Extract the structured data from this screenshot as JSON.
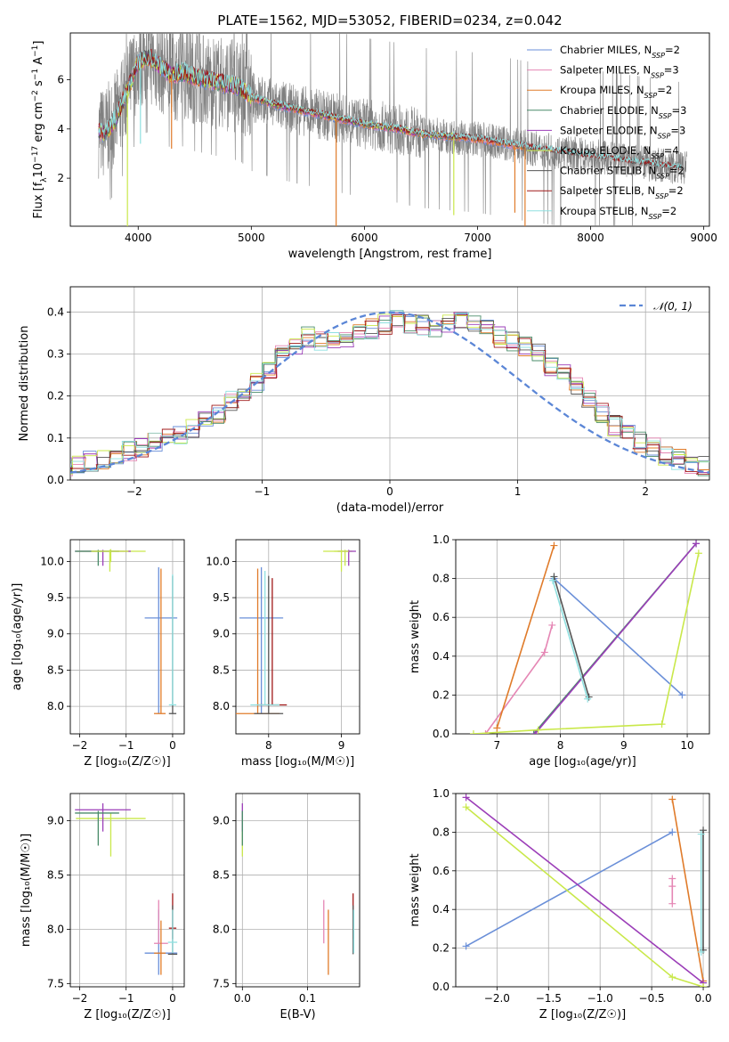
{
  "title": "PLATE=1562, MJD=53052, FIBERID=0234, z=0.042",
  "colors": {
    "chabrier_miles": "#6a8fd8",
    "salpeter_miles": "#e586b4",
    "kroupa_miles": "#e07b2a",
    "chabrier_elodie": "#4a8c6a",
    "salpeter_elodie": "#9b3db8",
    "kroupa_elodie": "#c9e84a",
    "chabrier_stelib": "#555555",
    "salpeter_stelib": "#a01818",
    "kroupa_stelib": "#8fe0e0",
    "normal": "#5b86d6",
    "data": "#808080"
  },
  "chart_data": [
    {
      "id": "spectrum",
      "type": "line",
      "xlabel": "wavelength [Angstrom, rest frame]",
      "xlim": [
        3400,
        9050
      ],
      "ylim": [
        0.05,
        7.9
      ],
      "xticks": [
        4000,
        5000,
        6000,
        7000,
        8000,
        9000
      ],
      "yticks": [
        2,
        4,
        6
      ],
      "legend": {
        "placement": "top-right",
        "entries": [
          {
            "pre": "Chabrier MILES, N",
            "sub": "SSP",
            "post": "=2",
            "color_key": "chabrier_miles"
          },
          {
            "pre": "Salpeter MILES, N",
            "sub": "SSP",
            "post": "=3",
            "color_key": "salpeter_miles"
          },
          {
            "pre": "Kroupa MILES, N",
            "sub": "SSP",
            "post": "=2",
            "color_key": "kroupa_miles"
          },
          {
            "pre": "Chabrier ELODIE, N",
            "sub": "SSP",
            "post": "=3",
            "color_key": "chabrier_elodie"
          },
          {
            "pre": "Salpeter ELODIE, N",
            "sub": "SSP",
            "post": "=3",
            "color_key": "salpeter_elodie"
          },
          {
            "pre": "Kroupa ELODIE, N",
            "sub": "SSP",
            "post": "=4",
            "color_key": "kroupa_elodie"
          },
          {
            "pre": "Chabrier STELIB, N",
            "sub": "SSP",
            "post": "=2",
            "color_key": "chabrier_stelib"
          },
          {
            "pre": "Salpeter STELIB, N",
            "sub": "SSP",
            "post": "=2",
            "color_key": "salpeter_stelib"
          },
          {
            "pre": "Kroupa STELIB, N",
            "sub": "SSP",
            "post": "=2",
            "color_key": "kroupa_stelib"
          }
        ]
      },
      "continuum": [
        [
          3650,
          3.9
        ],
        [
          3700,
          3.8
        ],
        [
          3800,
          4.4
        ],
        [
          3900,
          5.5
        ],
        [
          4000,
          6.7
        ],
        [
          4100,
          6.9
        ],
        [
          4200,
          6.5
        ],
        [
          4300,
          6.2
        ],
        [
          4400,
          6.3
        ],
        [
          4500,
          6.1
        ],
        [
          4700,
          5.9
        ],
        [
          4900,
          5.7
        ],
        [
          5000,
          5.3
        ],
        [
          5200,
          5.0
        ],
        [
          5500,
          4.7
        ],
        [
          5800,
          4.4
        ],
        [
          6000,
          4.2
        ],
        [
          6300,
          4.0
        ],
        [
          6500,
          3.8
        ],
        [
          7000,
          3.6
        ],
        [
          7500,
          3.2
        ],
        [
          8000,
          2.9
        ],
        [
          8500,
          2.6
        ],
        [
          8800,
          2.4
        ]
      ],
      "model_dips": [
        [
          3905,
          0.05,
          "kroupa_elodie"
        ],
        [
          4020,
          3.4,
          "kroupa_stelib"
        ],
        [
          4295,
          3.2,
          "kroupa_miles"
        ],
        [
          5750,
          0.05,
          "kroupa_miles"
        ],
        [
          6790,
          0.5,
          "kroupa_elodie"
        ],
        [
          7330,
          0.6,
          "kroupa_miles"
        ],
        [
          7420,
          0.05,
          "kroupa_miles"
        ]
      ]
    },
    {
      "id": "residuals",
      "type": "area",
      "xlabel": "(data-model)/error",
      "ylabel": "Normed distribution",
      "xlim": [
        -2.5,
        2.5
      ],
      "ylim": [
        0,
        0.46
      ],
      "xticks": [
        -2,
        -1,
        0,
        1,
        2
      ],
      "yticks": [
        0.0,
        0.1,
        0.2,
        0.3,
        0.4
      ],
      "grid": true,
      "legend_label": "𝒩(0, 1)",
      "legend_placement": "top-right",
      "bin_width": 0.1,
      "envelope": [
        0.03,
        0.03,
        0.035,
        0.04,
        0.045,
        0.05,
        0.06,
        0.07,
        0.08,
        0.09,
        0.1,
        0.11,
        0.12,
        0.14,
        0.16,
        0.19,
        0.21,
        0.23,
        0.26,
        0.3,
        0.32,
        0.34,
        0.33,
        0.33,
        0.34,
        0.35,
        0.36,
        0.37,
        0.38,
        0.37,
        0.37,
        0.36,
        0.37,
        0.38,
        0.37,
        0.36,
        0.34,
        0.33,
        0.32,
        0.3,
        0.27,
        0.25,
        0.22,
        0.19,
        0.16,
        0.13,
        0.11,
        0.09,
        0.08,
        0.06,
        0.05,
        0.04,
        0.035,
        0.03,
        0.025,
        0.02,
        0.02,
        0.02,
        0.02,
        0.02
      ]
    },
    {
      "id": "age_vs_Z",
      "type": "scatter",
      "xlabel": "Z [log₁₀(Z/Z☉)]",
      "ylabel": "age  [log₁₀(age/yr)]",
      "xlim": [
        -2.2,
        0.25
      ],
      "ylim": [
        7.62,
        10.3
      ],
      "xticks": [
        -2,
        -1,
        0
      ],
      "yticks": [
        8.0,
        8.5,
        9.0,
        9.5,
        10.0
      ],
      "points": [
        {
          "x": -1.33,
          "y": 10.14,
          "xerr": [
            0.75,
            0.75
          ],
          "yerr": [
            0.15,
            0.03
          ],
          "c": "kroupa_elodie"
        },
        {
          "x": -1.5,
          "y": 10.14,
          "xerr": [
            0.6,
            0.6
          ],
          "yerr": [
            0.2,
            0.02
          ],
          "c": "salpeter_elodie"
        },
        {
          "x": -1.6,
          "y": 10.14,
          "xerr": [
            0.5,
            0.45
          ],
          "yerr": [
            0.2,
            0.02
          ],
          "c": "chabrier_elodie"
        },
        {
          "x": -1.35,
          "y": 10.14,
          "xerr": [
            0.4,
            0.4
          ],
          "yerr": [
            0.28,
            0.02
          ],
          "c": "kroupa_elodie"
        },
        {
          "x": -0.3,
          "y": 9.22,
          "xerr": [
            0.3,
            0.4
          ],
          "yerr": [
            1.32,
            0.7
          ],
          "c": "chabrier_miles"
        },
        {
          "x": -0.25,
          "y": 7.9,
          "xerr": [
            0.15,
            0.1
          ],
          "yerr": [
            0.0,
            2.0
          ],
          "c": "kroupa_miles"
        },
        {
          "x": 0.0,
          "y": 7.9,
          "xerr": [
            0.08,
            0.08
          ],
          "yerr": [
            0.0,
            1.9
          ],
          "c": "chabrier_stelib"
        },
        {
          "x": 0.0,
          "y": 8.02,
          "xerr": [
            0.08,
            0.08
          ],
          "yerr": [
            0.0,
            1.8
          ],
          "c": "kroupa_stelib"
        }
      ]
    },
    {
      "id": "age_vs_mass",
      "type": "scatter",
      "xlabel": "mass [log₁₀(M/M☉)]",
      "xlim": [
        7.55,
        9.25
      ],
      "ylim": [
        7.62,
        10.3
      ],
      "xticks": [
        8,
        9
      ],
      "yticks": [
        8.0,
        8.5,
        9.0,
        9.5,
        10.0
      ],
      "points": [
        {
          "x": 9.05,
          "y": 10.14,
          "xerr": [
            0.3,
            0.1
          ],
          "yerr": [
            0.2,
            0.02
          ],
          "c": "kroupa_elodie"
        },
        {
          "x": 9.1,
          "y": 10.14,
          "xerr": [
            0.15,
            0.1
          ],
          "yerr": [
            0.2,
            0.02
          ],
          "c": "salpeter_elodie"
        },
        {
          "x": 9.0,
          "y": 10.14,
          "xerr": [
            0.1,
            0.1
          ],
          "yerr": [
            0.28,
            0.02
          ],
          "c": "kroupa_elodie"
        },
        {
          "x": 7.9,
          "y": 9.22,
          "xerr": [
            0.3,
            0.3
          ],
          "yerr": [
            1.32,
            0.7
          ],
          "c": "chabrier_miles"
        },
        {
          "x": 7.85,
          "y": 7.9,
          "xerr": [
            0.3,
            0.3
          ],
          "yerr": [
            0.0,
            2.0
          ],
          "c": "kroupa_miles"
        },
        {
          "x": 8.0,
          "y": 7.9,
          "xerr": [
            0.2,
            0.2
          ],
          "yerr": [
            0.0,
            1.9
          ],
          "c": "chabrier_stelib"
        },
        {
          "x": 8.05,
          "y": 8.02,
          "xerr": [
            0.2,
            0.2
          ],
          "yerr": [
            0.0,
            1.75
          ],
          "c": "salpeter_stelib"
        },
        {
          "x": 7.95,
          "y": 8.02,
          "xerr": [
            0.2,
            0.2
          ],
          "yerr": [
            0.0,
            1.85
          ],
          "c": "kroupa_stelib"
        }
      ]
    },
    {
      "id": "weight_vs_age",
      "type": "line",
      "xlabel": "age  [log₁₀(age/yr)]",
      "ylabel": "mass weight",
      "xlim": [
        6.35,
        10.35
      ],
      "ylim": [
        0.0,
        1.0
      ],
      "xticks": [
        7,
        8,
        9,
        10
      ],
      "yticks": [
        0.0,
        0.2,
        0.4,
        0.6,
        0.8,
        1.0
      ],
      "series": [
        {
          "c": "chabrier_miles",
          "x": [
            7.9,
            9.92
          ],
          "y": [
            0.8,
            0.2
          ]
        },
        {
          "c": "salpeter_miles",
          "x": [
            6.82,
            7.75,
            7.87
          ],
          "y": [
            0.0,
            0.42,
            0.56
          ]
        },
        {
          "c": "kroupa_miles",
          "x": [
            7.0,
            7.9
          ],
          "y": [
            0.03,
            0.97
          ]
        },
        {
          "c": "chabrier_elodie",
          "x": [
            7.58,
            10.14
          ],
          "y": [
            0.0,
            0.98
          ]
        },
        {
          "c": "salpeter_elodie",
          "x": [
            7.6,
            10.14
          ],
          "y": [
            0.0,
            0.98
          ]
        },
        {
          "c": "kroupa_elodie",
          "x": [
            6.63,
            7.65,
            9.6,
            10.18
          ],
          "y": [
            0.0,
            0.02,
            0.05,
            0.93
          ]
        },
        {
          "c": "chabrier_stelib",
          "x": [
            7.9,
            8.45
          ],
          "y": [
            0.81,
            0.19
          ]
        },
        {
          "c": "kroupa_stelib",
          "x": [
            7.88,
            8.43
          ],
          "y": [
            0.79,
            0.18
          ]
        }
      ]
    },
    {
      "id": "mass_vs_Z",
      "type": "scatter",
      "xlabel": "Z [log₁₀(Z/Z☉)]",
      "ylabel": "mass [log₁₀(M/M☉)]",
      "xlim": [
        -2.2,
        0.25
      ],
      "ylim": [
        7.47,
        9.25
      ],
      "xticks": [
        -2,
        -1,
        0
      ],
      "yticks": [
        7.5,
        8.0,
        8.5,
        9.0
      ],
      "points": [
        {
          "x": -1.33,
          "y": 9.02,
          "xerr": [
            0.75,
            0.75
          ],
          "yerr": [
            0.35,
            0.05
          ],
          "c": "kroupa_elodie"
        },
        {
          "x": -1.5,
          "y": 9.1,
          "xerr": [
            0.6,
            0.6
          ],
          "yerr": [
            0.2,
            0.06
          ],
          "c": "salpeter_elodie"
        },
        {
          "x": -1.6,
          "y": 9.07,
          "xerr": [
            0.5,
            0.45
          ],
          "yerr": [
            0.3,
            0.02
          ],
          "c": "chabrier_elodie"
        },
        {
          "x": -0.3,
          "y": 7.78,
          "xerr": [
            0.3,
            0.4
          ],
          "yerr": [
            0.2,
            0.4
          ],
          "c": "chabrier_miles"
        },
        {
          "x": -0.3,
          "y": 7.87,
          "xerr": [
            0.1,
            0.2
          ],
          "yerr": [
            0.0,
            0.4
          ],
          "c": "salpeter_miles"
        },
        {
          "x": -0.25,
          "y": 7.78,
          "xerr": [
            0.15,
            0.1
          ],
          "yerr": [
            0.2,
            0.3
          ],
          "c": "kroupa_miles"
        },
        {
          "x": 0.0,
          "y": 8.01,
          "xerr": [
            0.08,
            0.08
          ],
          "yerr": [
            0.1,
            0.32
          ],
          "c": "salpeter_stelib"
        },
        {
          "x": 0.0,
          "y": 7.77,
          "xerr": [
            0.1,
            0.1
          ],
          "yerr": [
            0.0,
            0.45
          ],
          "c": "chabrier_stelib"
        },
        {
          "x": 0.0,
          "y": 7.88,
          "xerr": [
            0.1,
            0.1
          ],
          "yerr": [
            0.1,
            0.3
          ],
          "c": "kroupa_stelib"
        }
      ]
    },
    {
      "id": "mass_vs_ebv",
      "type": "scatter",
      "xlabel": "E(B-V)",
      "xlim": [
        -0.01,
        0.18
      ],
      "ylim": [
        7.47,
        9.25
      ],
      "xticks": [
        0.0,
        0.1
      ],
      "yticks": [
        7.5,
        8.0,
        8.5,
        9.0
      ],
      "points": [
        {
          "x": 0.0,
          "y": 9.02,
          "xerr": [
            0,
            0
          ],
          "yerr": [
            0.35,
            0.05
          ],
          "c": "kroupa_elodie"
        },
        {
          "x": 0.0,
          "y": 9.1,
          "xerr": [
            0,
            0
          ],
          "yerr": [
            0.2,
            0.06
          ],
          "c": "salpeter_elodie"
        },
        {
          "x": 0.0,
          "y": 9.07,
          "xerr": [
            0,
            0
          ],
          "yerr": [
            0.3,
            0.02
          ],
          "c": "chabrier_elodie"
        },
        {
          "x": 0.125,
          "y": 7.87,
          "xerr": [
            0,
            0
          ],
          "yerr": [
            0.0,
            0.4
          ],
          "c": "salpeter_miles"
        },
        {
          "x": 0.132,
          "y": 7.78,
          "xerr": [
            0,
            0
          ],
          "yerr": [
            0.2,
            0.4
          ],
          "c": "kroupa_miles"
        },
        {
          "x": 0.17,
          "y": 8.01,
          "xerr": [
            0,
            0
          ],
          "yerr": [
            0.1,
            0.32
          ],
          "c": "salpeter_stelib"
        },
        {
          "x": 0.17,
          "y": 7.77,
          "xerr": [
            0,
            0
          ],
          "yerr": [
            0.0,
            0.45
          ],
          "c": "chabrier_stelib"
        },
        {
          "x": 0.171,
          "y": 7.88,
          "xerr": [
            0,
            0
          ],
          "yerr": [
            0.1,
            0.3
          ],
          "c": "kroupa_stelib"
        }
      ]
    },
    {
      "id": "weight_vs_Z",
      "type": "line",
      "xlabel": "Z [log₁₀(Z/Z☉)]",
      "ylabel": "mass weight",
      "xlim": [
        -2.4,
        0.06
      ],
      "ylim": [
        0.0,
        1.0
      ],
      "xticks": [
        -2.0,
        -1.5,
        -1.0,
        -0.5,
        0.0
      ],
      "yticks": [
        0.0,
        0.2,
        0.4,
        0.6,
        0.8,
        1.0
      ],
      "series": [
        {
          "c": "chabrier_miles",
          "x": [
            -2.3,
            -0.3
          ],
          "y": [
            0.21,
            0.8
          ]
        },
        {
          "c": "salpeter_miles",
          "x": [
            -0.3,
            -0.3,
            -0.3
          ],
          "y": [
            0.43,
            0.56,
            0.52
          ]
        },
        {
          "c": "kroupa_miles",
          "x": [
            -0.3,
            0.0
          ],
          "y": [
            0.97,
            0.03
          ]
        },
        {
          "c": "salpeter_elodie",
          "x": [
            -2.3,
            0.0
          ],
          "y": [
            0.98,
            0.02
          ]
        },
        {
          "c": "kroupa_elodie",
          "x": [
            -2.3,
            -0.3,
            0.0
          ],
          "y": [
            0.93,
            0.05,
            0.0
          ]
        },
        {
          "c": "chabrier_stelib",
          "x": [
            0.0,
            0.0
          ],
          "y": [
            0.81,
            0.19
          ]
        },
        {
          "c": "kroupa_stelib",
          "x": [
            -0.02,
            -0.02
          ],
          "y": [
            0.79,
            0.18
          ]
        }
      ]
    }
  ]
}
